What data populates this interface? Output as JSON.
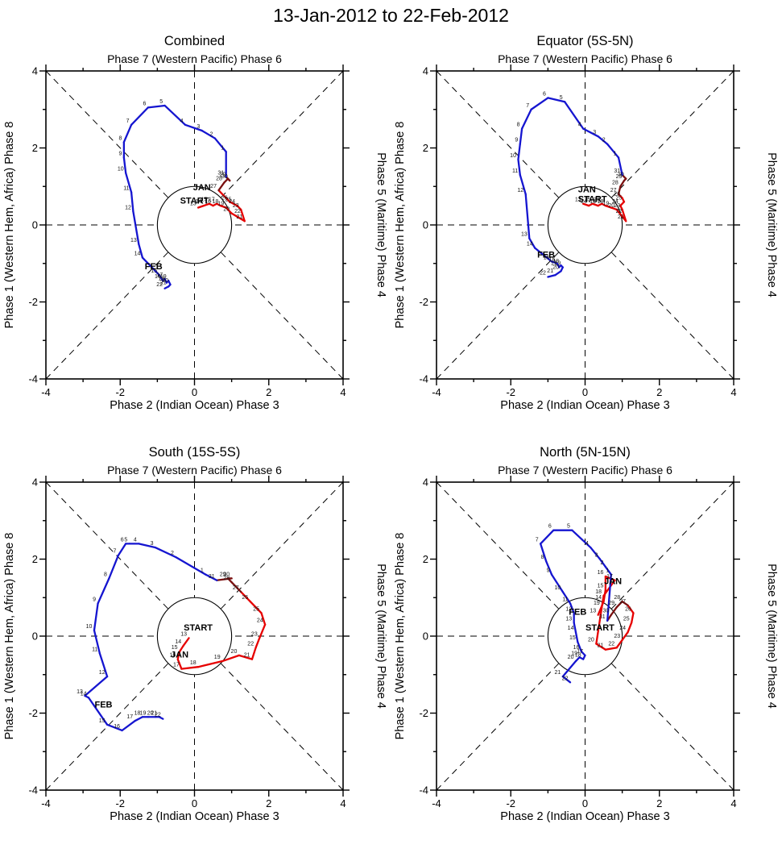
{
  "page_title": "13-Jan-2012 to 22-Feb-2012",
  "colors": {
    "jan": "#e60000",
    "jan_late": "#7a1010",
    "feb": "#1515d0",
    "start": "#000000",
    "axis": "#000000"
  },
  "axes": {
    "xlim": [
      -4,
      4
    ],
    "ylim": [
      -4,
      4
    ],
    "xmin": -4,
    "xmax": 4,
    "ymin": -4,
    "ymax": 4,
    "major_tick_step": 2,
    "minor_tick_step": 1,
    "tick_labels": [
      "-4",
      "-2",
      "0",
      "2",
      "4"
    ],
    "unit_circle_radius": 1,
    "grid": "dashed-cross-and-diagonals"
  },
  "shared_labels": {
    "subtitle": "Phase 7 (Western Pacific) Phase 6",
    "xlabel": "Phase 2 (Indian Ocean) Phase 3",
    "ylabel_left": "Phase 1 (Western Hem, Africa) Phase 8",
    "ylabel_right": "Phase 5 (Maritime) Phase 4"
  },
  "chart_data": [
    {
      "type": "line",
      "id": "combined",
      "title": "Combined",
      "series": [
        {
          "name": "JAN",
          "color_key": "jan",
          "dark_from_day": 28,
          "points": [
            [
              13,
              0.1,
              0.45
            ],
            [
              14,
              0.25,
              0.5
            ],
            [
              15,
              0.4,
              0.55
            ],
            [
              16,
              0.5,
              0.5
            ],
            [
              17,
              0.6,
              0.55
            ],
            [
              18,
              0.7,
              0.5
            ],
            [
              19,
              0.85,
              0.45
            ],
            [
              20,
              1.0,
              0.3
            ],
            [
              21,
              1.35,
              0.1
            ],
            [
              22,
              1.3,
              0.25
            ],
            [
              23,
              1.25,
              0.4
            ],
            [
              24,
              1.15,
              0.5
            ],
            [
              25,
              1.05,
              0.55
            ],
            [
              26,
              0.95,
              0.6
            ],
            [
              27,
              0.65,
              0.9
            ],
            [
              28,
              0.8,
              1.1
            ],
            [
              29,
              0.9,
              1.2
            ],
            [
              30,
              0.95,
              1.15
            ],
            [
              31,
              0.85,
              1.25
            ]
          ]
        },
        {
          "name": "FEB",
          "color_key": "feb",
          "points": [
            [
              1,
              0.85,
              1.9
            ],
            [
              2,
              0.55,
              2.25
            ],
            [
              3,
              0.2,
              2.45
            ],
            [
              4,
              -0.25,
              2.6
            ],
            [
              5,
              -0.8,
              3.1
            ],
            [
              6,
              -1.25,
              3.05
            ],
            [
              7,
              -1.7,
              2.6
            ],
            [
              8,
              -1.9,
              2.15
            ],
            [
              9,
              -1.9,
              1.75
            ],
            [
              10,
              -1.85,
              1.35
            ],
            [
              11,
              -1.7,
              0.85
            ],
            [
              12,
              -1.65,
              0.35
            ],
            [
              13,
              -1.5,
              -0.5
            ],
            [
              14,
              -1.4,
              -0.85
            ],
            [
              15,
              -0.95,
              -1.3
            ],
            [
              16,
              -0.85,
              -1.45
            ],
            [
              17,
              -0.8,
              -1.4
            ],
            [
              18,
              -0.75,
              -1.5
            ],
            [
              19,
              -0.7,
              -1.45
            ],
            [
              20,
              -0.65,
              -1.55
            ],
            [
              21,
              -0.7,
              -1.6
            ],
            [
              22,
              -0.8,
              -1.65
            ]
          ]
        }
      ],
      "annotations": [
        {
          "text": "START",
          "x": 0.0,
          "y": 0.55,
          "color_key": "start"
        },
        {
          "text": "JAN",
          "x": 0.2,
          "y": 0.9,
          "color_key": "jan"
        },
        {
          "text": "FEB",
          "x": -1.1,
          "y": -1.15,
          "color_key": "feb"
        }
      ]
    },
    {
      "type": "line",
      "id": "equator",
      "title": "Equator (5S-5N)",
      "series": [
        {
          "name": "JAN",
          "color_key": "jan",
          "dark_from_day": 28,
          "points": [
            [
              13,
              -0.05,
              0.55
            ],
            [
              14,
              0.1,
              0.5
            ],
            [
              15,
              0.2,
              0.55
            ],
            [
              16,
              0.35,
              0.5
            ],
            [
              17,
              0.45,
              0.55
            ],
            [
              18,
              0.55,
              0.5
            ],
            [
              19,
              0.7,
              0.45
            ],
            [
              20,
              0.85,
              0.4
            ],
            [
              21,
              1.1,
              0.1
            ],
            [
              22,
              1.05,
              0.25
            ],
            [
              23,
              1.0,
              0.4
            ],
            [
              24,
              0.95,
              0.5
            ],
            [
              25,
              1.05,
              0.6
            ],
            [
              26,
              1.0,
              0.7
            ],
            [
              27,
              0.9,
              0.8
            ],
            [
              28,
              0.95,
              1.0
            ],
            [
              29,
              1.05,
              1.15
            ],
            [
              30,
              1.1,
              1.2
            ],
            [
              31,
              1.0,
              1.3
            ]
          ]
        },
        {
          "name": "FEB",
          "color_key": "feb",
          "points": [
            [
              1,
              0.9,
              1.75
            ],
            [
              2,
              0.6,
              2.1
            ],
            [
              3,
              0.35,
              2.3
            ],
            [
              4,
              -0.05,
              2.5
            ],
            [
              5,
              -0.55,
              3.2
            ],
            [
              6,
              -1.0,
              3.3
            ],
            [
              7,
              -1.45,
              3.0
            ],
            [
              8,
              -1.7,
              2.5
            ],
            [
              9,
              -1.75,
              2.1
            ],
            [
              10,
              -1.8,
              1.7
            ],
            [
              11,
              -1.75,
              1.3
            ],
            [
              12,
              -1.6,
              0.8
            ],
            [
              13,
              -1.5,
              -0.35
            ],
            [
              14,
              -1.35,
              -0.6
            ],
            [
              15,
              -0.9,
              -0.95
            ],
            [
              16,
              -0.75,
              -1.0
            ],
            [
              17,
              -0.7,
              -1.1
            ],
            [
              18,
              -0.65,
              -1.05
            ],
            [
              19,
              -0.6,
              -1.1
            ],
            [
              20,
              -0.65,
              -1.2
            ],
            [
              21,
              -0.8,
              -1.3
            ],
            [
              22,
              -1.0,
              -1.35
            ]
          ]
        }
      ],
      "annotations": [
        {
          "text": "START",
          "x": 0.2,
          "y": 0.6,
          "color_key": "start"
        },
        {
          "text": "JAN",
          "x": 0.05,
          "y": 0.85,
          "color_key": "jan"
        },
        {
          "text": "FEB",
          "x": -1.05,
          "y": -0.85,
          "color_key": "feb"
        }
      ]
    },
    {
      "type": "line",
      "id": "south",
      "title": "South (15S-5S)",
      "series": [
        {
          "name": "JAN",
          "color_key": "jan",
          "dark_from_day": 28,
          "points": [
            [
              13,
              -0.15,
              -0.05
            ],
            [
              14,
              -0.3,
              -0.25
            ],
            [
              15,
              -0.4,
              -0.4
            ],
            [
              16,
              -0.45,
              -0.6
            ],
            [
              17,
              -0.35,
              -0.85
            ],
            [
              18,
              0.1,
              -0.8
            ],
            [
              19,
              0.75,
              -0.65
            ],
            [
              20,
              1.2,
              -0.5
            ],
            [
              21,
              1.55,
              -0.6
            ],
            [
              22,
              1.65,
              -0.3
            ],
            [
              23,
              1.75,
              -0.05
            ],
            [
              24,
              1.9,
              0.3
            ],
            [
              25,
              1.8,
              0.6
            ],
            [
              26,
              1.5,
              0.9
            ],
            [
              27,
              1.25,
              1.15
            ],
            [
              28,
              1.0,
              1.4
            ],
            [
              29,
              0.9,
              1.5
            ],
            [
              30,
              1.0,
              1.5
            ],
            [
              31,
              0.6,
              1.45
            ]
          ]
        },
        {
          "name": "FEB",
          "color_key": "feb",
          "points": [
            [
              1,
              0.3,
              1.6
            ],
            [
              2,
              -0.5,
              2.05
            ],
            [
              3,
              -1.05,
              2.3
            ],
            [
              4,
              -1.5,
              2.4
            ],
            [
              5,
              -1.75,
              2.4
            ],
            [
              6,
              -1.85,
              2.4
            ],
            [
              7,
              -2.05,
              2.1
            ],
            [
              8,
              -2.3,
              1.5
            ],
            [
              9,
              -2.6,
              0.85
            ],
            [
              10,
              -2.7,
              0.15
            ],
            [
              11,
              -2.55,
              -0.45
            ],
            [
              12,
              -2.35,
              -1.05
            ],
            [
              13,
              -2.95,
              -1.55
            ],
            [
              14,
              -2.85,
              -1.6
            ],
            [
              15,
              -2.35,
              -2.3
            ],
            [
              16,
              -1.95,
              -2.45
            ],
            [
              17,
              -1.6,
              -2.2
            ],
            [
              18,
              -1.4,
              -2.1
            ],
            [
              19,
              -1.25,
              -2.1
            ],
            [
              20,
              -1.05,
              -2.1
            ],
            [
              21,
              -0.95,
              -2.1
            ],
            [
              22,
              -0.85,
              -2.15
            ]
          ]
        }
      ],
      "annotations": [
        {
          "text": "START",
          "x": 0.1,
          "y": 0.15,
          "color_key": "start"
        },
        {
          "text": "JAN",
          "x": -0.4,
          "y": -0.55,
          "color_key": "jan"
        },
        {
          "text": "FEB",
          "x": -2.45,
          "y": -1.85,
          "color_key": "feb"
        }
      ]
    },
    {
      "type": "line",
      "id": "north",
      "title": "North (5N-15N)",
      "series": [
        {
          "name": "JAN",
          "color_key": "jan",
          "dark_from_day": 28,
          "points": [
            [
              13,
              0.35,
              0.55
            ],
            [
              14,
              0.5,
              0.9
            ],
            [
              15,
              0.55,
              1.2
            ],
            [
              16,
              0.55,
              1.55
            ],
            [
              17,
              0.8,
              1.45
            ],
            [
              18,
              0.5,
              1.05
            ],
            [
              19,
              0.45,
              0.75
            ],
            [
              20,
              0.3,
              -0.2
            ],
            [
              21,
              0.55,
              -0.35
            ],
            [
              22,
              0.85,
              -0.3
            ],
            [
              23,
              1.0,
              -0.1
            ],
            [
              24,
              1.15,
              0.1
            ],
            [
              25,
              1.25,
              0.35
            ],
            [
              26,
              1.3,
              0.6
            ],
            [
              27,
              1.15,
              0.8
            ],
            [
              28,
              1.0,
              0.9
            ],
            [
              29,
              0.85,
              0.75
            ],
            [
              30,
              0.7,
              0.55
            ],
            [
              31,
              0.6,
              0.4
            ]
          ]
        },
        {
          "name": "FEB",
          "color_key": "feb",
          "points": [
            [
              1,
              0.7,
              1.6
            ],
            [
              2,
              0.55,
              1.8
            ],
            [
              3,
              0.4,
              2.0
            ],
            [
              4,
              0.15,
              2.3
            ],
            [
              5,
              -0.35,
              2.75
            ],
            [
              6,
              -0.85,
              2.75
            ],
            [
              7,
              -1.2,
              2.4
            ],
            [
              8,
              -1.05,
              1.95
            ],
            [
              9,
              -0.9,
              1.6
            ],
            [
              10,
              -0.6,
              1.15
            ],
            [
              11,
              -0.4,
              0.85
            ],
            [
              12,
              -0.3,
              0.6
            ],
            [
              13,
              -0.3,
              0.35
            ],
            [
              14,
              -0.25,
              0.1
            ],
            [
              15,
              -0.2,
              -0.15
            ],
            [
              16,
              -0.1,
              -0.4
            ],
            [
              17,
              0.0,
              -0.5
            ],
            [
              18,
              -0.05,
              -0.6
            ],
            [
              19,
              -0.15,
              -0.55
            ],
            [
              20,
              -0.25,
              -0.65
            ],
            [
              21,
              -0.6,
              -1.05
            ],
            [
              22,
              -0.4,
              -1.2
            ]
          ]
        }
      ],
      "annotations": [
        {
          "text": "START",
          "x": 0.4,
          "y": 0.15,
          "color_key": "start"
        },
        {
          "text": "JAN",
          "x": 0.75,
          "y": 1.35,
          "color_key": "jan"
        },
        {
          "text": "FEB",
          "x": -0.2,
          "y": 0.55,
          "color_key": "feb"
        }
      ]
    }
  ]
}
